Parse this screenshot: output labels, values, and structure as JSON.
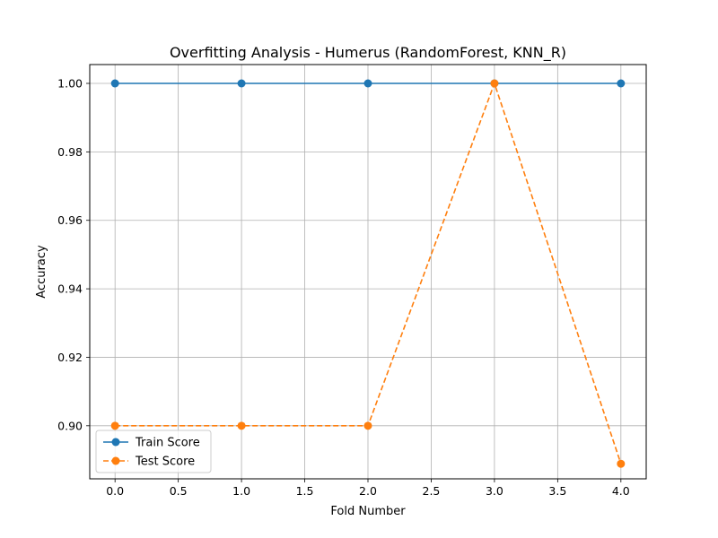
{
  "chart_data": {
    "type": "line",
    "title": "Overfitting Analysis - Humerus (RandomForest, KNN_R)",
    "xlabel": "Fold Number",
    "ylabel": "Accuracy",
    "x": [
      0,
      1,
      2,
      3,
      4
    ],
    "xlim": [
      -0.2,
      4.2
    ],
    "ylim": [
      0.8845,
      1.0055
    ],
    "xticks": [
      0.0,
      0.5,
      1.0,
      1.5,
      2.0,
      2.5,
      3.0,
      3.5,
      4.0
    ],
    "xtick_labels": [
      "0.0",
      "0.5",
      "1.0",
      "1.5",
      "2.0",
      "2.5",
      "3.0",
      "3.5",
      "4.0"
    ],
    "yticks": [
      0.9,
      0.92,
      0.94,
      0.96,
      0.98,
      1.0
    ],
    "ytick_labels": [
      "0.90",
      "0.92",
      "0.94",
      "0.96",
      "0.98",
      "1.00"
    ],
    "grid": true,
    "legend_position": "lower-left",
    "series": [
      {
        "name": "Train Score",
        "values": [
          1.0,
          1.0,
          1.0,
          1.0,
          1.0
        ],
        "color": "#1f77b4",
        "linestyle": "solid",
        "marker": "circle"
      },
      {
        "name": "Test Score",
        "values": [
          0.9,
          0.9,
          0.9,
          1.0,
          0.8889
        ],
        "color": "#ff7f0e",
        "linestyle": "dashed",
        "marker": "circle"
      }
    ]
  }
}
